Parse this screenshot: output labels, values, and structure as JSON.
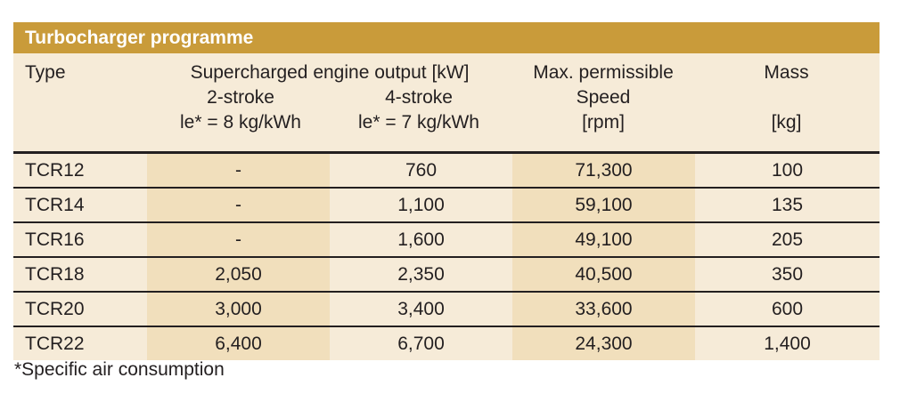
{
  "title": "Turbocharger programme",
  "header": {
    "type": "Type",
    "output": "Supercharged engine output [kW]",
    "two_stroke": "2-stroke",
    "four_stroke": "4-stroke",
    "two_stroke_le": "le* = 8 kg/kWh",
    "four_stroke_le": "le* = 7 kg/kWh",
    "speed_line1": "Max. permissible",
    "speed_line2": "Speed",
    "speed_unit": "[rpm]",
    "mass": "Mass",
    "mass_unit": "[kg]"
  },
  "rows": [
    {
      "type": "TCR12",
      "two": "-",
      "four": "760",
      "speed": "71,300",
      "mass": "100"
    },
    {
      "type": "TCR14",
      "two": "-",
      "four": "1,100",
      "speed": "59,100",
      "mass": "135"
    },
    {
      "type": "TCR16",
      "two": "-",
      "four": "1,600",
      "speed": "49,100",
      "mass": "205"
    },
    {
      "type": "TCR18",
      "two": "2,050",
      "four": "2,350",
      "speed": "40,500",
      "mass": "350"
    },
    {
      "type": "TCR20",
      "two": "3,000",
      "four": "3,400",
      "speed": "33,600",
      "mass": "600"
    },
    {
      "type": "TCR22",
      "two": "6,400",
      "four": "6,700",
      "speed": "24,300",
      "mass": "1,400"
    }
  ],
  "footnote": "*Specific air consumption"
}
